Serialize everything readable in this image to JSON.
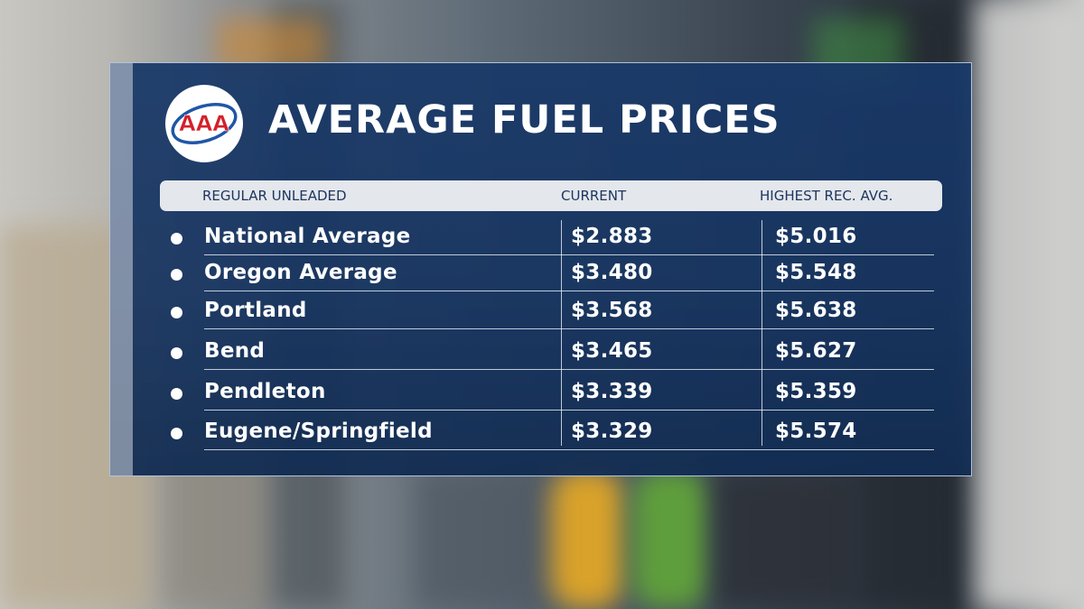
{
  "logo": {
    "text": "AAA",
    "icon": "aaa-logo-icon",
    "colors": {
      "ring": "#1f56a8",
      "letters": "#d3202b",
      "background": "#ffffff"
    }
  },
  "title": "AVERAGE FUEL PRICES",
  "table": {
    "headers": {
      "name": "REGULAR UNLEADED",
      "current": "CURRENT",
      "highest": "HIGHEST REC. AVG."
    },
    "rows": [
      {
        "name": "National Average",
        "current": "$2.883",
        "highest": "$5.016"
      },
      {
        "name": "Oregon Average",
        "current": "$3.480",
        "highest": "$5.548"
      },
      {
        "name": "Portland",
        "current": "$3.568",
        "highest": "$5.638"
      },
      {
        "name": "Bend",
        "current": "$3.465",
        "highest": "$5.627"
      },
      {
        "name": "Pendleton",
        "current": "$3.339",
        "highest": "$5.359"
      },
      {
        "name": "Eugene/Springfield",
        "current": "$3.329",
        "highest": "$5.574"
      }
    ]
  },
  "colors": {
    "panel": "#183868",
    "header_bar": "#e4e7ec",
    "header_text": "#1d3660",
    "text": "#ffffff"
  }
}
